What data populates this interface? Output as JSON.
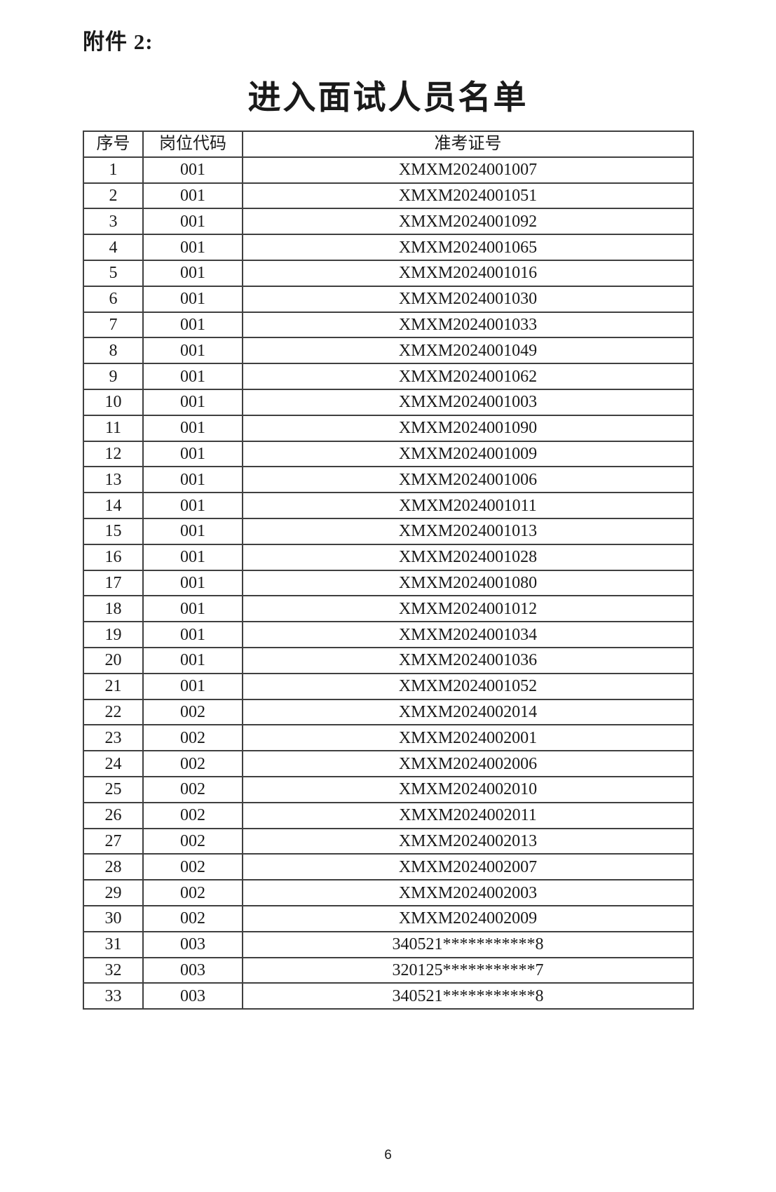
{
  "page": {
    "attachment_label": "附件 2:",
    "title": "进入面试人员名单",
    "page_number": "6"
  },
  "colors": {
    "background": "#ffffff",
    "text": "#1a1a1a",
    "border": "#404040"
  },
  "table": {
    "columns": [
      {
        "key": "no",
        "label": "序号"
      },
      {
        "key": "code",
        "label": "岗位代码"
      },
      {
        "key": "ticket",
        "label": "准考证号"
      }
    ],
    "rows": [
      {
        "no": "1",
        "code": "001",
        "ticket": "XMXM2024001007"
      },
      {
        "no": "2",
        "code": "001",
        "ticket": "XMXM2024001051"
      },
      {
        "no": "3",
        "code": "001",
        "ticket": "XMXM2024001092"
      },
      {
        "no": "4",
        "code": "001",
        "ticket": "XMXM2024001065"
      },
      {
        "no": "5",
        "code": "001",
        "ticket": "XMXM2024001016"
      },
      {
        "no": "6",
        "code": "001",
        "ticket": "XMXM2024001030"
      },
      {
        "no": "7",
        "code": "001",
        "ticket": "XMXM2024001033"
      },
      {
        "no": "8",
        "code": "001",
        "ticket": "XMXM2024001049"
      },
      {
        "no": "9",
        "code": "001",
        "ticket": "XMXM2024001062"
      },
      {
        "no": "10",
        "code": "001",
        "ticket": "XMXM2024001003"
      },
      {
        "no": "11",
        "code": "001",
        "ticket": "XMXM2024001090"
      },
      {
        "no": "12",
        "code": "001",
        "ticket": "XMXM2024001009"
      },
      {
        "no": "13",
        "code": "001",
        "ticket": "XMXM2024001006"
      },
      {
        "no": "14",
        "code": "001",
        "ticket": "XMXM2024001011"
      },
      {
        "no": "15",
        "code": "001",
        "ticket": "XMXM2024001013"
      },
      {
        "no": "16",
        "code": "001",
        "ticket": "XMXM2024001028"
      },
      {
        "no": "17",
        "code": "001",
        "ticket": "XMXM2024001080"
      },
      {
        "no": "18",
        "code": "001",
        "ticket": "XMXM2024001012"
      },
      {
        "no": "19",
        "code": "001",
        "ticket": "XMXM2024001034"
      },
      {
        "no": "20",
        "code": "001",
        "ticket": "XMXM2024001036"
      },
      {
        "no": "21",
        "code": "001",
        "ticket": "XMXM2024001052"
      },
      {
        "no": "22",
        "code": "002",
        "ticket": "XMXM2024002014"
      },
      {
        "no": "23",
        "code": "002",
        "ticket": "XMXM2024002001"
      },
      {
        "no": "24",
        "code": "002",
        "ticket": "XMXM2024002006"
      },
      {
        "no": "25",
        "code": "002",
        "ticket": "XMXM2024002010"
      },
      {
        "no": "26",
        "code": "002",
        "ticket": "XMXM2024002011"
      },
      {
        "no": "27",
        "code": "002",
        "ticket": "XMXM2024002013"
      },
      {
        "no": "28",
        "code": "002",
        "ticket": "XMXM2024002007"
      },
      {
        "no": "29",
        "code": "002",
        "ticket": "XMXM2024002003"
      },
      {
        "no": "30",
        "code": "002",
        "ticket": "XMXM2024002009"
      },
      {
        "no": "31",
        "code": "003",
        "ticket": "340521***********8"
      },
      {
        "no": "32",
        "code": "003",
        "ticket": "320125***********7"
      },
      {
        "no": "33",
        "code": "003",
        "ticket": "340521***********8"
      }
    ]
  }
}
